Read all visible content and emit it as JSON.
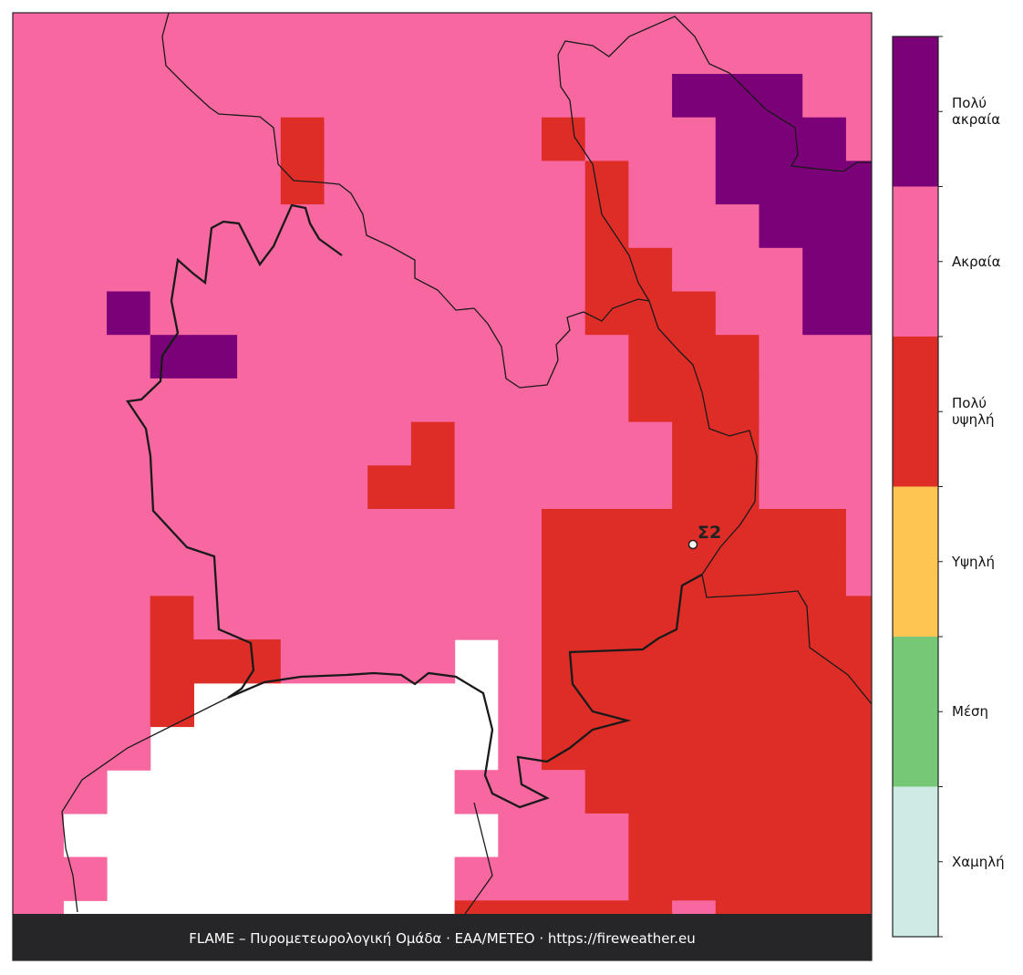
{
  "map": {
    "levels": [
      {
        "label": "Χαμηλή",
        "color": "#cdebe4"
      },
      {
        "label": "Μέση",
        "color": "#76c776"
      },
      {
        "label": "Υψηλή",
        "color": "#ffc552"
      },
      {
        "label": "Πολύ\nυψηλή",
        "color": "#de2d26"
      },
      {
        "label": "Ακραία",
        "color": "#f768a1"
      },
      {
        "label": "Πολύ\nακραία",
        "color": "#7a0177"
      }
    ],
    "grid": [
      [
        4,
        4,
        4,
        4,
        4,
        4,
        4,
        4,
        4,
        4,
        4,
        4,
        4,
        4,
        4,
        4,
        4,
        4,
        4,
        4,
        4
      ],
      [
        4,
        4,
        4,
        4,
        4,
        4,
        4,
        4,
        4,
        4,
        4,
        4,
        4,
        4,
        4,
        4,
        4,
        4,
        4,
        4,
        4
      ],
      [
        4,
        4,
        4,
        4,
        4,
        4,
        4,
        4,
        4,
        4,
        4,
        4,
        4,
        4,
        4,
        4,
        5,
        5,
        5,
        4,
        4
      ],
      [
        4,
        4,
        4,
        4,
        4,
        4,
        4,
        3,
        4,
        4,
        4,
        4,
        4,
        3,
        4,
        4,
        4,
        5,
        5,
        5,
        4
      ],
      [
        4,
        4,
        4,
        4,
        4,
        4,
        4,
        3,
        4,
        4,
        4,
        4,
        4,
        4,
        3,
        4,
        4,
        5,
        5,
        5,
        5
      ],
      [
        4,
        4,
        4,
        4,
        4,
        4,
        4,
        4,
        4,
        4,
        4,
        4,
        4,
        4,
        3,
        4,
        4,
        4,
        5,
        5,
        5
      ],
      [
        4,
        4,
        4,
        4,
        4,
        4,
        4,
        4,
        4,
        4,
        4,
        4,
        4,
        4,
        3,
        3,
        4,
        4,
        4,
        5,
        5
      ],
      [
        4,
        4,
        4,
        5,
        4,
        4,
        4,
        4,
        4,
        4,
        4,
        4,
        4,
        4,
        3,
        3,
        3,
        4,
        4,
        5,
        5
      ],
      [
        4,
        4,
        4,
        4,
        5,
        5,
        4,
        4,
        4,
        4,
        4,
        4,
        4,
        4,
        4,
        3,
        3,
        3,
        4,
        4,
        4
      ],
      [
        4,
        4,
        4,
        4,
        4,
        4,
        4,
        4,
        4,
        4,
        4,
        4,
        4,
        4,
        4,
        3,
        3,
        3,
        4,
        4,
        4
      ],
      [
        4,
        4,
        4,
        4,
        4,
        4,
        4,
        4,
        4,
        4,
        3,
        4,
        4,
        4,
        4,
        4,
        3,
        3,
        4,
        4,
        4
      ],
      [
        4,
        4,
        4,
        4,
        4,
        4,
        4,
        4,
        4,
        3,
        3,
        4,
        4,
        4,
        4,
        4,
        3,
        3,
        4,
        4,
        4
      ],
      [
        4,
        4,
        4,
        4,
        4,
        4,
        4,
        4,
        4,
        4,
        4,
        4,
        4,
        3,
        3,
        3,
        3,
        3,
        3,
        3,
        4
      ],
      [
        4,
        4,
        4,
        4,
        4,
        4,
        4,
        4,
        4,
        4,
        4,
        4,
        4,
        3,
        3,
        3,
        3,
        3,
        3,
        3,
        4
      ],
      [
        4,
        4,
        4,
        4,
        3,
        4,
        4,
        4,
        4,
        4,
        4,
        4,
        4,
        3,
        3,
        3,
        3,
        3,
        3,
        3,
        3
      ],
      [
        4,
        4,
        4,
        4,
        3,
        3,
        3,
        4,
        4,
        4,
        4,
        null,
        4,
        3,
        3,
        3,
        3,
        3,
        3,
        3,
        3
      ],
      [
        4,
        4,
        4,
        4,
        3,
        null,
        null,
        null,
        null,
        null,
        null,
        null,
        4,
        3,
        3,
        3,
        3,
        3,
        3,
        3,
        3
      ],
      [
        4,
        4,
        4,
        4,
        null,
        null,
        null,
        null,
        null,
        null,
        null,
        null,
        4,
        3,
        3,
        3,
        3,
        3,
        3,
        3,
        3
      ],
      [
        4,
        4,
        4,
        null,
        null,
        null,
        null,
        null,
        null,
        null,
        null,
        4,
        4,
        4,
        3,
        3,
        3,
        3,
        3,
        3,
        3
      ],
      [
        4,
        4,
        null,
        null,
        null,
        null,
        null,
        null,
        null,
        null,
        null,
        null,
        4,
        4,
        4,
        3,
        3,
        3,
        3,
        3,
        3
      ],
      [
        4,
        4,
        4,
        null,
        null,
        null,
        null,
        null,
        null,
        null,
        null,
        4,
        4,
        4,
        4,
        3,
        3,
        3,
        3,
        3,
        3
      ],
      [
        4,
        4,
        null,
        null,
        null,
        null,
        null,
        null,
        null,
        null,
        null,
        3,
        3,
        3,
        3,
        3,
        4,
        3,
        3,
        3,
        3
      ]
    ],
    "station": {
      "label": "Σ2"
    }
  },
  "footer": "FLAME – Πυρομετεωρολογική Ομάδα · ΕΑΑ/METEO · https://fireweather.eu"
}
